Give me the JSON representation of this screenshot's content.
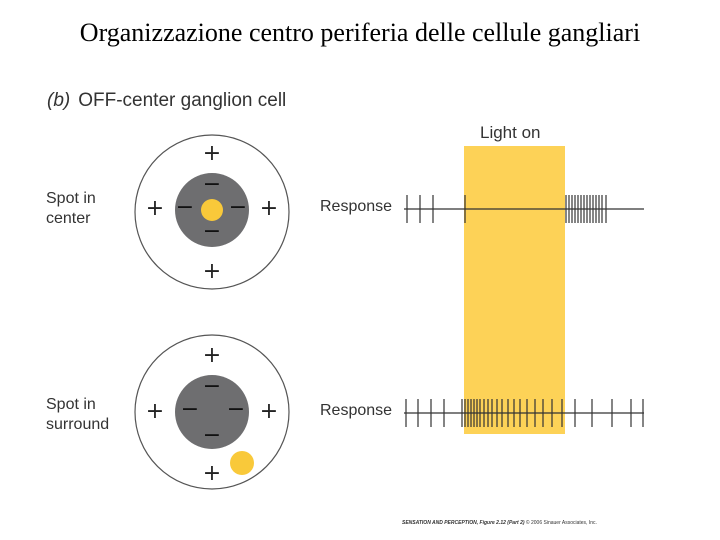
{
  "title": "Organizzazione centro periferia delle cellule gangliari",
  "panel": {
    "tag": "(b)",
    "heading": "OFF-center ganglion cell"
  },
  "light_label": "Light on",
  "rows": [
    {
      "label": [
        "Spot in",
        "center"
      ],
      "response": "Response"
    },
    {
      "label": [
        "Spot in",
        "surround"
      ],
      "response": "Response"
    }
  ],
  "signs": {
    "plus": "+",
    "minus": "−"
  },
  "credit": {
    "book": "SENSATION AND PERCEPTION,",
    "figure": "Figure 2.12 (Part 2)",
    "copyright": "© 2006 Sinauer Associates, Inc."
  },
  "colors": {
    "center": "#6e6e70",
    "spot": "#f9c93a",
    "light": "#fdd257",
    "ring": "#555555"
  },
  "spike_trains": [
    [
      407,
      420,
      433,
      465,
      566,
      569,
      572,
      575,
      578,
      581,
      584,
      587,
      590,
      593,
      596,
      599,
      602,
      606
    ],
    [
      406,
      418,
      431,
      444,
      462,
      465,
      468,
      471,
      474,
      477,
      480,
      484,
      488,
      492,
      497,
      502,
      508,
      514,
      520,
      527,
      535,
      543,
      552,
      562,
      575,
      592,
      612,
      631,
      643
    ]
  ]
}
